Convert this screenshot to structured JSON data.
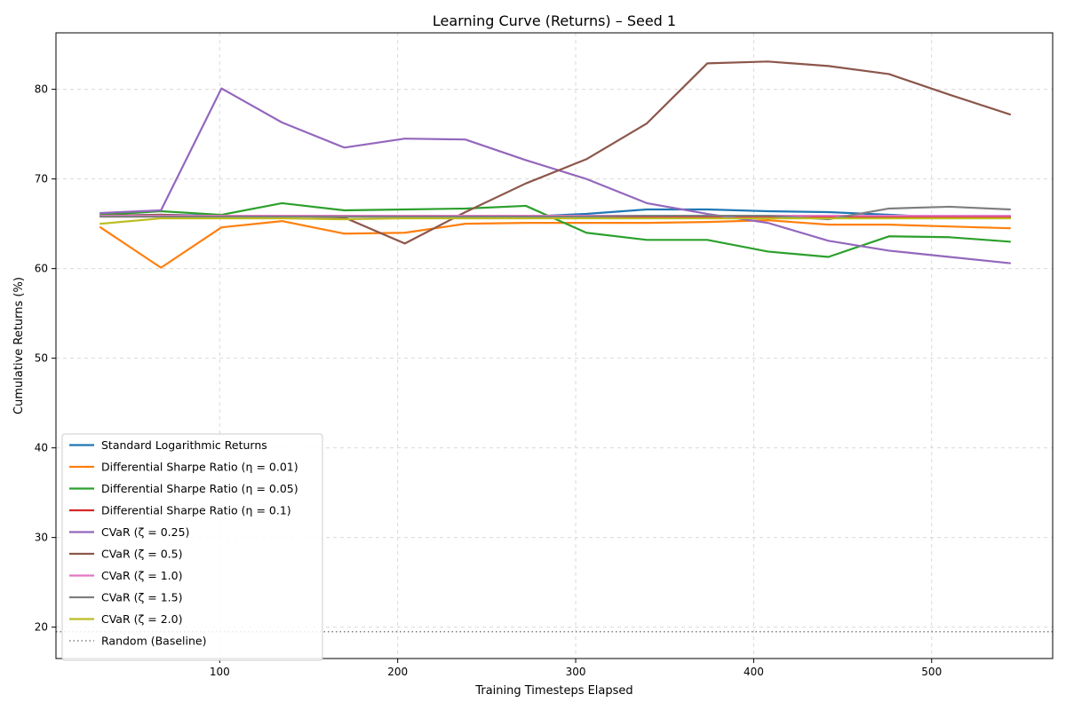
{
  "chart_data": {
    "type": "line",
    "title": "Learning Curve (Returns) – Seed 1",
    "xlabel": "Training Timesteps Elapsed",
    "ylabel": "Cumulative Returns (%)",
    "xlim": [
      8,
      568
    ],
    "ylim": [
      16.5,
      86.3
    ],
    "xticks": [
      100,
      200,
      300,
      400,
      500
    ],
    "yticks": [
      20,
      30,
      40,
      50,
      60,
      70,
      80
    ],
    "grid": true,
    "legend_position": "lower-left",
    "x": [
      33,
      67,
      101,
      135,
      170,
      204,
      238,
      272,
      306,
      340,
      374,
      408,
      442,
      476,
      510,
      544
    ],
    "series": [
      {
        "name": "Standard Logarithmic Returns",
        "color": "#1f77b4",
        "style": "solid",
        "values": [
          65.9,
          66.0,
          65.9,
          65.9,
          65.8,
          65.8,
          65.8,
          65.8,
          66.1,
          66.6,
          66.6,
          66.4,
          66.3,
          66.0,
          65.7,
          65.7
        ]
      },
      {
        "name": "Differential Sharpe Ratio (η = 0.01)",
        "color": "#ff7f0e",
        "style": "solid",
        "values": [
          64.6,
          60.1,
          64.6,
          65.3,
          63.9,
          64.0,
          65.0,
          65.1,
          65.1,
          65.1,
          65.2,
          65.4,
          64.9,
          64.9,
          64.7,
          64.5
        ]
      },
      {
        "name": "Differential Sharpe Ratio (η = 0.05)",
        "color": "#2ca02c",
        "style": "solid",
        "values": [
          66.0,
          66.4,
          66.0,
          67.3,
          66.5,
          66.6,
          66.7,
          67.0,
          64.0,
          63.2,
          63.2,
          61.9,
          61.3,
          63.6,
          63.5,
          63.0
        ]
      },
      {
        "name": "Differential Sharpe Ratio (η = 0.1)",
        "color": "#d62728",
        "style": "solid",
        "values": [
          65.8,
          65.8,
          65.8,
          65.8,
          65.8,
          65.8,
          65.8,
          65.8,
          65.8,
          65.8,
          65.8,
          65.8,
          65.8,
          65.8,
          65.8,
          65.8
        ]
      },
      {
        "name": "CVaR (ζ = 0.25)",
        "color": "#9467bd",
        "style": "solid",
        "values": [
          66.2,
          66.5,
          80.1,
          76.3,
          73.5,
          74.5,
          74.4,
          72.1,
          70.0,
          67.3,
          66.1,
          65.1,
          63.1,
          62.0,
          61.3,
          60.6
        ]
      },
      {
        "name": "CVaR (ζ = 0.5)",
        "color": "#8c564b",
        "style": "solid",
        "values": [
          65.9,
          66.0,
          65.8,
          65.9,
          65.7,
          62.8,
          66.3,
          69.5,
          72.2,
          76.2,
          82.9,
          83.1,
          82.6,
          81.7,
          79.4,
          77.2
        ]
      },
      {
        "name": "CVaR (ζ = 1.0)",
        "color": "#e377c2",
        "style": "solid",
        "values": [
          65.9,
          65.9,
          65.9,
          65.9,
          65.9,
          65.9,
          65.9,
          65.9,
          65.9,
          65.9,
          65.9,
          65.9,
          65.9,
          65.9,
          65.9,
          65.9
        ]
      },
      {
        "name": "CVaR (ζ = 1.5)",
        "color": "#7f7f7f",
        "style": "solid",
        "values": [
          65.8,
          65.8,
          65.8,
          65.8,
          65.8,
          65.8,
          65.8,
          65.8,
          65.8,
          65.9,
          65.9,
          65.9,
          65.5,
          66.7,
          66.9,
          66.6
        ]
      },
      {
        "name": "CVaR (ζ = 2.0)",
        "color": "#bcbd22",
        "style": "solid",
        "values": [
          65.0,
          65.6,
          65.6,
          65.6,
          65.5,
          65.6,
          65.6,
          65.6,
          65.6,
          65.6,
          65.6,
          65.6,
          65.6,
          65.6,
          65.6,
          65.6
        ]
      },
      {
        "name": "Random (Baseline)",
        "color": "#7f7f7f",
        "style": "dotted",
        "values": [
          19.5,
          19.5,
          19.5,
          19.5,
          19.5,
          19.5,
          19.5,
          19.5,
          19.5,
          19.5,
          19.5,
          19.5,
          19.5,
          19.5,
          19.5,
          19.5
        ]
      }
    ]
  }
}
